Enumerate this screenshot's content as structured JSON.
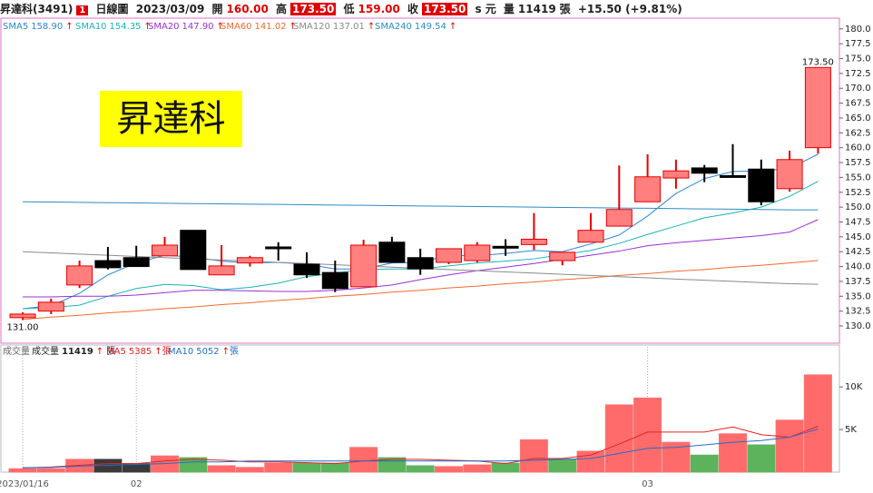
{
  "header": {
    "name": "昇達科(3491)",
    "flag": "1",
    "period": "日線圖",
    "date": "2023/03/09",
    "open_label": "開",
    "open": "160.00",
    "high_label": "高",
    "high": "173.50",
    "low_label": "低",
    "low": "159.00",
    "close_label": "收",
    "close": "173.50",
    "unit_toggle": "s",
    "currency": "元",
    "volume_label": "量",
    "volume": "11419",
    "volume_unit": "張",
    "change": "+15.50 (+9.81%)"
  },
  "badge": "昇達科",
  "chart_data": [
    {
      "type": "candlestick",
      "open": [
        131.4,
        132.5,
        136.9,
        141.0,
        141.5,
        141.8,
        146.1,
        138.6,
        140.6,
        143.3,
        140.4,
        139.0,
        136.6,
        144.1,
        141.5,
        140.7,
        141.0,
        143.4,
        143.7,
        141.0,
        144.1,
        146.8,
        150.9,
        154.9,
        156.6,
        155.3,
        156.4,
        153.1,
        160.0
      ],
      "high": [
        132.3,
        134.6,
        141.0,
        143.3,
        143.5,
        145.0,
        146.1,
        143.6,
        141.8,
        144.1,
        142.4,
        141.0,
        144.5,
        145.0,
        143.0,
        143.0,
        144.1,
        144.6,
        149.0,
        142.4,
        149.0,
        157.0,
        158.9,
        158.0,
        157.1,
        160.6,
        158.0,
        159.5,
        173.5
      ],
      "low": [
        131.0,
        132.0,
        136.4,
        139.5,
        140.0,
        141.8,
        139.5,
        138.6,
        140.0,
        141.0,
        138.1,
        135.7,
        136.6,
        140.7,
        138.6,
        140.4,
        140.7,
        141.8,
        142.8,
        140.2,
        144.1,
        146.8,
        150.9,
        153.1,
        154.2,
        155.2,
        150.3,
        152.6,
        159.0
      ],
      "close": [
        132.0,
        134.0,
        140.1,
        139.8,
        140.0,
        143.6,
        139.5,
        140.1,
        141.5,
        143.0,
        138.6,
        136.3,
        143.6,
        140.7,
        139.6,
        143.0,
        143.6,
        143.1,
        144.6,
        142.4,
        146.1,
        149.6,
        155.1,
        156.1,
        155.7,
        155.2,
        150.9,
        158.0,
        173.5
      ],
      "up_color": "#ff7f7f",
      "up_edge": "#e60000",
      "down_color": "#000000",
      "max_label": "173.50",
      "min_label": "131.00",
      "ylim": [
        127.1,
        181.8
      ],
      "yticks": [
        {
          "value": 130,
          "label": "130.0"
        },
        {
          "value": 132.5,
          "label": "132.5"
        },
        {
          "value": 135,
          "label": "135.0"
        },
        {
          "value": 137.5,
          "label": "137.5"
        },
        {
          "value": 140,
          "label": "140.0"
        },
        {
          "value": 142.5,
          "label": "142.5"
        },
        {
          "value": 145,
          "label": "145.0"
        },
        {
          "value": 147.5,
          "label": "147.5"
        },
        {
          "value": 150,
          "label": "150.0"
        },
        {
          "value": 152.5,
          "label": "152.5"
        },
        {
          "value": 155,
          "label": "155.0"
        },
        {
          "value": 157.5,
          "label": "157.5"
        },
        {
          "value": 160,
          "label": "160.0"
        },
        {
          "value": 162.5,
          "label": "162.5"
        },
        {
          "value": 165,
          "label": "165.0"
        },
        {
          "value": 167.5,
          "label": "167.5"
        },
        {
          "value": 170,
          "label": "170.0"
        },
        {
          "value": 172.5,
          "label": "172.5"
        },
        {
          "value": 175,
          "label": "175.0"
        },
        {
          "value": 177.5,
          "label": "177.5"
        },
        {
          "value": 180,
          "label": "180.0"
        }
      ],
      "series": [
        {
          "name": "SMA5",
          "value_label": "158.90",
          "trend": "↑",
          "color": "#2f86d8",
          "values": [
            132.9,
            133.4,
            135.5,
            138.6,
            140.6,
            141.9,
            141.6,
            140.9,
            140.6,
            140.7,
            140.4,
            139.6,
            139.6,
            140.6,
            140.7,
            141.9,
            141.8,
            142.2,
            142.7,
            142.5,
            143.8,
            145.3,
            148.5,
            152.3,
            154.8,
            156.0,
            156.1,
            156.5,
            158.9
          ]
        },
        {
          "name": "SMA10",
          "value_label": "154.35",
          "trend": "↑",
          "color": "#19b3b8",
          "values": [
            132.9,
            133.1,
            133.5,
            135.0,
            136.3,
            137.0,
            136.8,
            136.1,
            136.5,
            137.2,
            138.3,
            138.9,
            139.5,
            139.6,
            139.6,
            140.1,
            140.6,
            140.9,
            141.3,
            142.0,
            142.7,
            143.9,
            145.4,
            146.8,
            148.2,
            149.0,
            150.0,
            151.8,
            154.35
          ]
        },
        {
          "name": "SMA20",
          "value_label": "147.90",
          "trend": "↑",
          "color": "#9b2fd6",
          "values": [
            134.9,
            134.9,
            135.0,
            135.0,
            135.2,
            135.6,
            136.0,
            136.0,
            135.9,
            135.8,
            135.8,
            136.0,
            136.4,
            136.9,
            137.8,
            138.6,
            139.3,
            139.9,
            140.5,
            141.2,
            141.9,
            142.6,
            143.5,
            144.0,
            144.4,
            144.8,
            145.2,
            145.8,
            147.9
          ]
        },
        {
          "name": "SMA60",
          "value_label": "141.02",
          "trend": "↑",
          "color": "#f26a2e",
          "values": [
            131.1,
            131.5,
            131.8,
            132.2,
            132.5,
            132.9,
            133.2,
            133.6,
            133.9,
            134.3,
            134.6,
            135.0,
            135.3,
            135.7,
            136.0,
            136.4,
            136.7,
            137.1,
            137.4,
            137.8,
            138.1,
            138.5,
            138.8,
            139.2,
            139.5,
            139.9,
            140.2,
            140.6,
            141.02
          ]
        },
        {
          "name": "SMA120",
          "value_label": "137.01",
          "trend": "↑",
          "color": "#8a8a8a",
          "values": [
            142.5,
            142.3,
            142.1,
            141.9,
            141.7,
            141.5,
            141.3,
            141.1,
            140.9,
            140.7,
            140.5,
            140.3,
            140.1,
            139.9,
            139.7,
            139.5,
            139.3,
            139.1,
            138.9,
            138.7,
            138.5,
            138.3,
            138.1,
            137.9,
            137.7,
            137.5,
            137.3,
            137.1,
            137.01
          ]
        },
        {
          "name": "SMA240",
          "value_label": "149.54",
          "trend": "↑",
          "color": "#2b8cc4",
          "values": [
            150.9,
            150.85,
            150.8,
            150.75,
            150.7,
            150.65,
            150.6,
            150.55,
            150.5,
            150.45,
            150.4,
            150.35,
            150.3,
            150.25,
            150.2,
            150.15,
            150.1,
            150.05,
            150.0,
            149.95,
            149.9,
            149.85,
            149.8,
            149.75,
            149.7,
            149.65,
            149.6,
            149.55,
            149.54
          ]
        }
      ]
    },
    {
      "type": "bar",
      "title": "成交量",
      "legend_label": "成交量",
      "legend_value": "11419",
      "trend": "↑",
      "unit": "張",
      "categories": [
        "2023/01/16",
        null,
        null,
        null,
        "02",
        null,
        null,
        null,
        null,
        null,
        null,
        null,
        null,
        null,
        null,
        null,
        null,
        null,
        null,
        null,
        null,
        null,
        "03",
        null,
        null,
        null,
        null,
        null,
        null
      ],
      "values": [
        400,
        400,
        1500,
        1500,
        1000,
        1900,
        1700,
        750,
        550,
        1050,
        1050,
        1050,
        2900,
        1700,
        750,
        650,
        850,
        1050,
        3800,
        1500,
        2450,
        7900,
        8700,
        3500,
        2000,
        4500,
        3200,
        6100,
        11419
      ],
      "colors": [
        "#ff6b6b",
        "#ff6b6b",
        "#ff6b6b",
        "#3a3a3a",
        "#3a3a3a",
        "#ff6b6b",
        "#5cb35c",
        "#ff6b6b",
        "#ff6b6b",
        "#ff6b6b",
        "#5cb35c",
        "#5cb35c",
        "#ff6b6b",
        "#5cb35c",
        "#5cb35c",
        "#ff6b6b",
        "#ff6b6b",
        "#5cb35c",
        "#ff6b6b",
        "#5cb35c",
        "#ff6b6b",
        "#ff6b6b",
        "#ff6b6b",
        "#ff6b6b",
        "#5cb35c",
        "#ff6b6b",
        "#5cb35c",
        "#ff6b6b",
        "#ff6b6b"
      ],
      "ylim": [
        0,
        14500
      ],
      "yticks": [
        {
          "value": 5000,
          "label": "5K"
        },
        {
          "value": 10000,
          "label": "10K"
        }
      ],
      "series": [
        {
          "name": "MA5",
          "value_label": "5385",
          "trend": "↑",
          "color": "#e52222",
          "values": [
            500,
            600,
            800,
            1000,
            1000,
            1300,
            1500,
            1400,
            1200,
            1200,
            1100,
            1000,
            1300,
            1500,
            1500,
            1400,
            1300,
            1000,
            1600,
            1600,
            2000,
            3300,
            4700,
            4700,
            4700,
            5300,
            4400,
            4100,
            5385
          ]
        },
        {
          "name": "MA10",
          "value_label": "5052",
          "trend": "↑",
          "color": "#1f6fc8",
          "values": [
            500,
            550,
            700,
            800,
            900,
            1000,
            1200,
            1200,
            1300,
            1300,
            1300,
            1300,
            1300,
            1300,
            1300,
            1300,
            1300,
            1300,
            1400,
            1500,
            1600,
            2200,
            2800,
            2900,
            3200,
            3500,
            3700,
            4100,
            5052
          ]
        }
      ]
    }
  ]
}
